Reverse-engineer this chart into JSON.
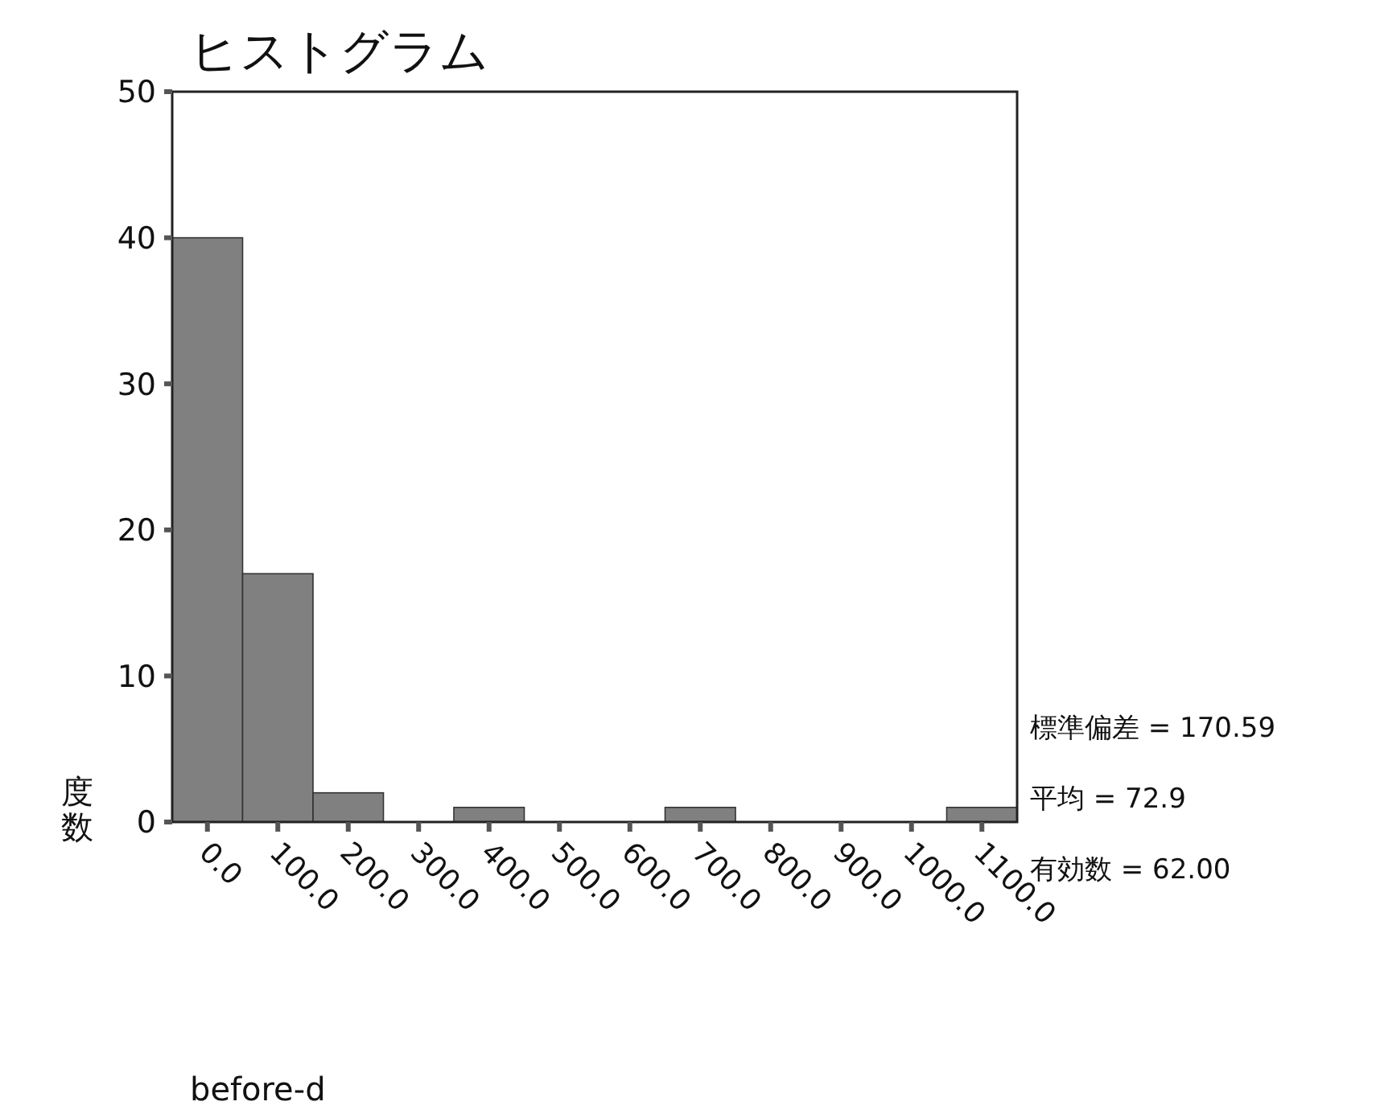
{
  "chart_data": {
    "type": "histogram",
    "title": "ヒストグラム",
    "xlabel": "before-d",
    "ylabel": "度数",
    "bins": [
      -50,
      50,
      150,
      250,
      350,
      450,
      550,
      650,
      750,
      850,
      950,
      1050,
      1150
    ],
    "values": [
      40,
      17,
      2,
      0,
      1,
      0,
      0,
      1,
      0,
      0,
      0,
      1
    ],
    "color": "#808080",
    "xlim": [
      -50,
      1150
    ],
    "xticks": [
      {
        "value": 0,
        "label": "0.0"
      },
      {
        "value": 100,
        "label": "100.0"
      },
      {
        "value": 200,
        "label": "200.0"
      },
      {
        "value": 300,
        "label": "300.0"
      },
      {
        "value": 400,
        "label": "400.0"
      },
      {
        "value": 500,
        "label": "500.0"
      },
      {
        "value": 600,
        "label": "600.0"
      },
      {
        "value": 700,
        "label": "700.0"
      },
      {
        "value": 800,
        "label": "800.0"
      },
      {
        "value": 900,
        "label": "900.0"
      },
      {
        "value": 1000,
        "label": "1000.0"
      },
      {
        "value": 1100,
        "label": "1100.0"
      }
    ],
    "ylim": [
      0,
      50
    ],
    "yticks": [
      0,
      10,
      20,
      30,
      40,
      50
    ],
    "grid": false,
    "annotations": [
      "標準偏差 = 170.59",
      "平均 = 72.9",
      "有効数 = 62.00"
    ]
  }
}
